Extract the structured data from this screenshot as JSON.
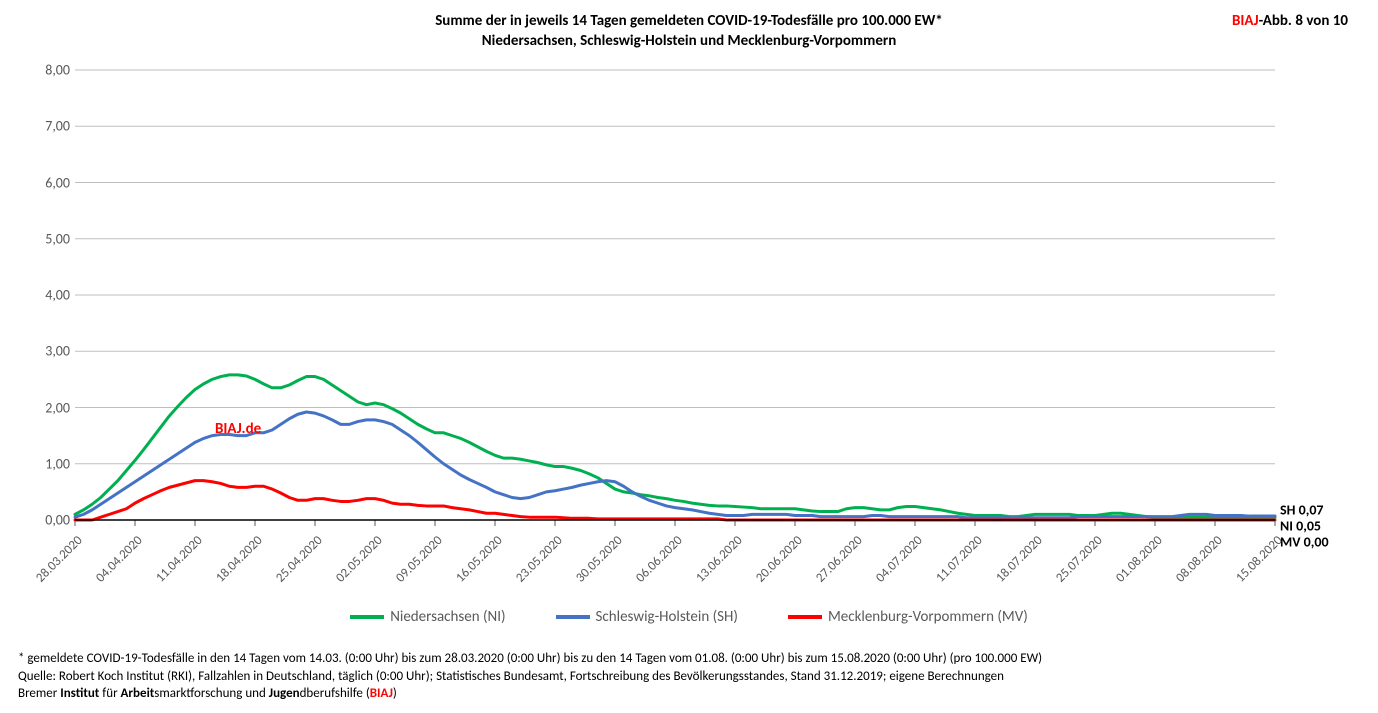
{
  "chart": {
    "type": "line",
    "title_line1": "Summe der in jeweils 14 Tagen gemeldeten COVID-19-Todesfälle pro 100.000 EW*",
    "title_line2": "Niedersachsen, Schleswig-Holstein und Mecklenburg-Vorpommern",
    "title_fontsize": 15,
    "corner_label_prefix": "BIAJ",
    "corner_label_suffix": "-Abb. 8 von 10",
    "watermark": "BIAJ.de",
    "background_color": "#ffffff",
    "grid_color": "#bfbfbf",
    "axis_line_color": "#000000",
    "axis_text_color": "#595959",
    "ylim": [
      0,
      8
    ],
    "ytick_step": 1,
    "yticks": [
      "0,00",
      "1,00",
      "2,00",
      "3,00",
      "4,00",
      "5,00",
      "6,00",
      "7,00",
      "8,00"
    ],
    "line_width": 3,
    "xticks_every": 7,
    "x_labels": [
      "28.03.2020",
      "04.04.2020",
      "11.04.2020",
      "18.04.2020",
      "25.04.2020",
      "02.05.2020",
      "09.05.2020",
      "16.05.2020",
      "23.05.2020",
      "30.05.2020",
      "06.06.2020",
      "13.06.2020",
      "20.06.2020",
      "27.06.2020",
      "04.07.2020",
      "11.07.2020",
      "18.07.2020",
      "25.07.2020",
      "01.08.2020",
      "08.08.2020",
      "15.08.2020"
    ],
    "n_points": 141,
    "end_labels": [
      {
        "text": "SH 0,07",
        "y_offset": -10
      },
      {
        "text": "NI 0,05",
        "y_offset": 6
      },
      {
        "text": "MV 0,00",
        "y_offset": 22
      }
    ],
    "series": [
      {
        "id": "NI",
        "name": "Niedersachsen (NI)",
        "color": "#00b050",
        "end_value_label": "NI 0,05",
        "values": [
          0.1,
          0.18,
          0.28,
          0.4,
          0.55,
          0.7,
          0.88,
          1.06,
          1.25,
          1.45,
          1.65,
          1.85,
          2.02,
          2.18,
          2.32,
          2.42,
          2.5,
          2.55,
          2.58,
          2.58,
          2.56,
          2.5,
          2.42,
          2.35,
          2.35,
          2.4,
          2.48,
          2.55,
          2.55,
          2.5,
          2.4,
          2.3,
          2.2,
          2.1,
          2.05,
          2.08,
          2.05,
          1.98,
          1.9,
          1.8,
          1.7,
          1.62,
          1.55,
          1.55,
          1.5,
          1.45,
          1.38,
          1.3,
          1.22,
          1.15,
          1.1,
          1.1,
          1.08,
          1.05,
          1.02,
          0.98,
          0.95,
          0.95,
          0.92,
          0.88,
          0.82,
          0.75,
          0.65,
          0.55,
          0.5,
          0.48,
          0.45,
          0.43,
          0.4,
          0.38,
          0.35,
          0.33,
          0.3,
          0.28,
          0.26,
          0.25,
          0.25,
          0.24,
          0.23,
          0.22,
          0.2,
          0.2,
          0.2,
          0.2,
          0.2,
          0.18,
          0.16,
          0.15,
          0.15,
          0.15,
          0.2,
          0.22,
          0.22,
          0.2,
          0.18,
          0.18,
          0.22,
          0.24,
          0.24,
          0.22,
          0.2,
          0.18,
          0.15,
          0.12,
          0.1,
          0.08,
          0.08,
          0.08,
          0.08,
          0.06,
          0.06,
          0.08,
          0.1,
          0.1,
          0.1,
          0.1,
          0.1,
          0.08,
          0.08,
          0.08,
          0.1,
          0.12,
          0.12,
          0.1,
          0.08,
          0.06,
          0.05,
          0.05,
          0.05,
          0.05,
          0.05,
          0.05,
          0.05,
          0.05,
          0.05,
          0.05,
          0.05,
          0.05,
          0.05,
          0.05,
          0.05
        ]
      },
      {
        "id": "SH",
        "name": "Schleswig-Holstein (SH)",
        "color": "#4472c4",
        "end_value_label": "SH 0,07",
        "values": [
          0.05,
          0.1,
          0.18,
          0.28,
          0.38,
          0.48,
          0.58,
          0.68,
          0.78,
          0.88,
          0.98,
          1.08,
          1.18,
          1.28,
          1.38,
          1.45,
          1.5,
          1.52,
          1.52,
          1.5,
          1.5,
          1.55,
          1.55,
          1.6,
          1.7,
          1.8,
          1.88,
          1.92,
          1.9,
          1.85,
          1.78,
          1.7,
          1.7,
          1.75,
          1.78,
          1.78,
          1.75,
          1.7,
          1.6,
          1.5,
          1.38,
          1.25,
          1.12,
          1.0,
          0.9,
          0.8,
          0.72,
          0.65,
          0.58,
          0.5,
          0.45,
          0.4,
          0.38,
          0.4,
          0.45,
          0.5,
          0.52,
          0.55,
          0.58,
          0.62,
          0.65,
          0.68,
          0.7,
          0.68,
          0.6,
          0.5,
          0.42,
          0.35,
          0.3,
          0.25,
          0.22,
          0.2,
          0.18,
          0.15,
          0.12,
          0.1,
          0.08,
          0.08,
          0.08,
          0.1,
          0.1,
          0.1,
          0.1,
          0.1,
          0.08,
          0.08,
          0.08,
          0.06,
          0.06,
          0.06,
          0.06,
          0.06,
          0.06,
          0.08,
          0.08,
          0.06,
          0.06,
          0.06,
          0.06,
          0.06,
          0.06,
          0.06,
          0.06,
          0.06,
          0.04,
          0.04,
          0.04,
          0.04,
          0.04,
          0.04,
          0.04,
          0.04,
          0.04,
          0.04,
          0.04,
          0.04,
          0.04,
          0.06,
          0.06,
          0.06,
          0.06,
          0.06,
          0.06,
          0.06,
          0.06,
          0.06,
          0.06,
          0.06,
          0.06,
          0.08,
          0.1,
          0.1,
          0.1,
          0.08,
          0.08,
          0.08,
          0.08,
          0.07,
          0.07,
          0.07,
          0.07
        ]
      },
      {
        "id": "MV",
        "name": "Mecklenburg-Vorpommern (MV)",
        "color": "#ff0000",
        "end_value_label": "MV 0,00",
        "values": [
          0.0,
          0.0,
          0.0,
          0.05,
          0.1,
          0.15,
          0.2,
          0.3,
          0.38,
          0.45,
          0.52,
          0.58,
          0.62,
          0.66,
          0.7,
          0.7,
          0.68,
          0.65,
          0.6,
          0.58,
          0.58,
          0.6,
          0.6,
          0.55,
          0.48,
          0.4,
          0.35,
          0.35,
          0.38,
          0.38,
          0.35,
          0.33,
          0.33,
          0.35,
          0.38,
          0.38,
          0.35,
          0.3,
          0.28,
          0.28,
          0.26,
          0.25,
          0.25,
          0.25,
          0.22,
          0.2,
          0.18,
          0.15,
          0.12,
          0.12,
          0.1,
          0.08,
          0.06,
          0.05,
          0.05,
          0.05,
          0.05,
          0.04,
          0.03,
          0.03,
          0.03,
          0.02,
          0.02,
          0.02,
          0.02,
          0.02,
          0.02,
          0.02,
          0.02,
          0.02,
          0.02,
          0.02,
          0.02,
          0.02,
          0.02,
          0.02,
          0.0,
          0.0,
          0.0,
          0.0,
          0.0,
          0.0,
          0.0,
          0.0,
          0.0,
          0.0,
          0.0,
          0.0,
          0.0,
          0.0,
          0.0,
          0.0,
          0.0,
          0.0,
          0.0,
          0.0,
          0.0,
          0.0,
          0.0,
          0.0,
          0.0,
          0.0,
          0.0,
          0.0,
          0.0,
          0.0,
          0.0,
          0.0,
          0.0,
          0.0,
          0.0,
          0.0,
          0.0,
          0.0,
          0.0,
          0.0,
          0.0,
          0.0,
          0.0,
          0.0,
          0.0,
          0.0,
          0.0,
          0.0,
          0.0,
          0.0,
          0.0,
          0.0,
          0.0,
          0.0,
          0.0,
          0.0,
          0.0,
          0.0,
          0.0,
          0.0,
          0.0,
          0.0,
          0.0,
          0.0,
          0.0
        ]
      }
    ]
  },
  "footnote": {
    "line1": "* gemeldete COVID-19-Todesfälle in den 14 Tagen vom 14.03. (0:00 Uhr) bis zum 28.03.2020 (0:00 Uhr) bis zu den 14 Tagen vom 01.08. (0:00 Uhr) bis zum 15.08.2020 (0:00 Uhr) (pro 100.000 EW)",
    "line2": "Quelle: Robert Koch Institut (RKI), Fallzahlen in Deutschland, täglich (0:00 Uhr); Statistisches Bundesamt, Fortschreibung des Bevölkerungsstandes, Stand 31.12.2019; eigene Berechnungen",
    "line3_prefix": "Bremer ",
    "line3_b1": "Institut",
    "line3_mid1": " für ",
    "line3_b2": "Arbeit",
    "line3_mid2": "smarktforschung und ",
    "line3_b3": "Jugen",
    "line3_mid3": "dberufshilfe (",
    "line3_biaj": "BIAJ",
    "line3_suffix": ")"
  }
}
